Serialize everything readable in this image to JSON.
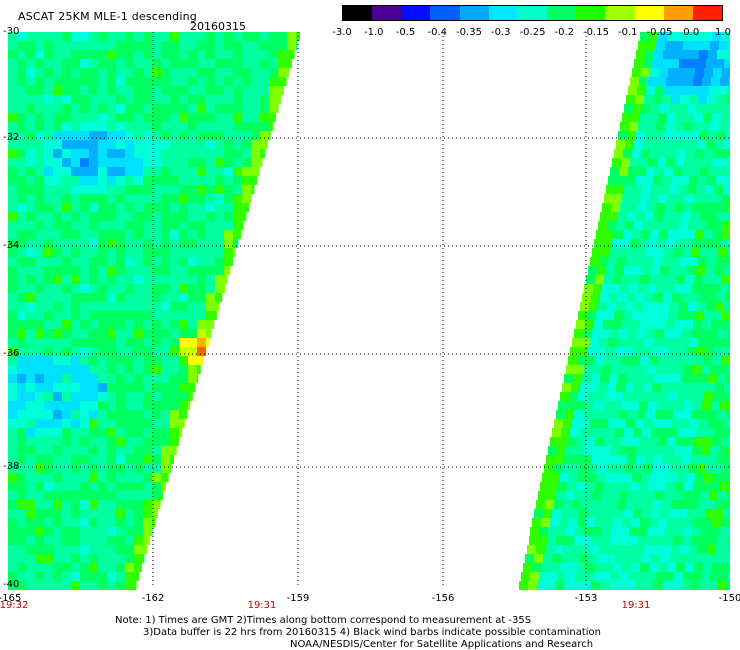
{
  "header": {
    "title": "ASCAT 25KM MLE-1 descending",
    "date": "20160315"
  },
  "colorbar": {
    "ticks": [
      "-3.0",
      "-1.0",
      "-0.5",
      "-0.4",
      "-0.35",
      "-0.3",
      "-0.25",
      "-0.2",
      "-0.15",
      "-0.1",
      "-0.05",
      "0.0",
      "1.0"
    ],
    "colors": [
      "#000000",
      "#4a0090",
      "#0010ff",
      "#0060ff",
      "#00a8ff",
      "#00e8ff",
      "#00ffc8",
      "#00ff60",
      "#20ff00",
      "#a0ff00",
      "#ffff00",
      "#ffa000",
      "#ff2000"
    ]
  },
  "axes": {
    "lat_labels": [
      "-30",
      "-32",
      "-34",
      "-36",
      "-38",
      "-40"
    ],
    "lon_labels": [
      "-165",
      "-162",
      "-159",
      "-156",
      "-153",
      "-150"
    ],
    "grid": true
  },
  "pass_times": [
    "19:32",
    "19:31",
    "19:31"
  ],
  "notes": [
    "Note: 1) Times are GMT 2)Times along bottom correspond to measurement at -35S",
    "3)Data buffer is 22 hrs from 20160315 4) Black wind barbs indicate possible contamination",
    "NOAA/NESDIS/Center for Satellite Applications and Research"
  ]
}
